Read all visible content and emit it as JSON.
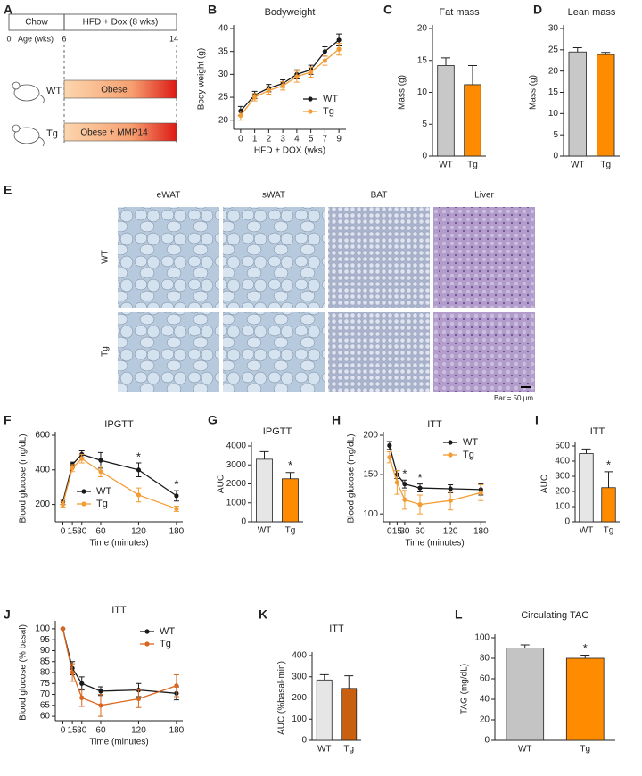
{
  "diagram": {
    "panel": "A",
    "phases": [
      "Chow",
      "HFD + Dox (8 wks)"
    ],
    "ticks": [
      "0",
      "6",
      "14"
    ],
    "axis_label": "Age (wks)",
    "rows": [
      {
        "label": "WT",
        "bar": "Obese"
      },
      {
        "label": "Tg",
        "bar": "Obese + MMP14"
      }
    ]
  },
  "histology": {
    "panel": "E",
    "columns": [
      "eWAT",
      "sWAT",
      "BAT",
      "Liver"
    ],
    "rows": [
      "WT",
      "Tg"
    ],
    "scale_note": "Bar = 50 μm"
  },
  "chart_data": [
    {
      "type": "line",
      "panel": "B",
      "title": "Bodyweight",
      "xlabel": "HFD + DOX (wks)",
      "ylabel": "Body weight (g)",
      "categories": [
        "0",
        "1",
        "2",
        "3",
        "4",
        "5",
        "7",
        "9"
      ],
      "ylim": [
        18,
        40
      ],
      "yticks": [
        20,
        25,
        30,
        35,
        40
      ],
      "legend": "lower right",
      "series": [
        {
          "name": "WT",
          "color": "#1a1a1a",
          "values": [
            22,
            25.5,
            27,
            28,
            30,
            31,
            35,
            37.5
          ],
          "errors": [
            1,
            0.8,
            0.8,
            0.8,
            1,
            1,
            1,
            1.3
          ]
        },
        {
          "name": "Tg",
          "color": "#f39c34",
          "values": [
            21,
            25,
            26.5,
            27.5,
            29.5,
            30.5,
            33,
            35.5
          ],
          "errors": [
            1,
            0.8,
            0.8,
            0.9,
            1.2,
            1.1,
            1,
            1.3
          ]
        }
      ]
    },
    {
      "type": "bar",
      "panel": "C",
      "title": "Fat mass",
      "ylabel": "Mass (g)",
      "categories": [
        "WT",
        "Tg"
      ],
      "values": [
        14.2,
        11.2
      ],
      "errors": [
        1.2,
        3
      ],
      "colors": [
        "#c8c8c8",
        "#ff8c00"
      ],
      "ylim": [
        0,
        20
      ],
      "yticks": [
        0,
        5,
        10,
        15,
        20
      ]
    },
    {
      "type": "bar",
      "panel": "D",
      "title": "Lean mass",
      "ylabel": "Mass (g)",
      "categories": [
        "WT",
        "Tg"
      ],
      "values": [
        24.5,
        23.9
      ],
      "errors": [
        1,
        0.5
      ],
      "colors": [
        "#c8c8c8",
        "#ff8c00"
      ],
      "ylim": [
        0,
        30
      ],
      "yticks": [
        0,
        5,
        10,
        15,
        20,
        25,
        30
      ]
    },
    {
      "type": "line",
      "panel": "F",
      "title": "IPGTT",
      "xlabel": "Time (minutes)",
      "ylabel": "Blood glucose (mg/dL)",
      "x": [
        0,
        15,
        30,
        60,
        120,
        180
      ],
      "xlim": [
        -12,
        190
      ],
      "xticks": [
        0,
        15,
        30,
        60,
        120,
        180
      ],
      "ylim": [
        100,
        600
      ],
      "yticks": [
        200,
        400,
        600
      ],
      "legend": "lower left",
      "series": [
        {
          "name": "WT",
          "color": "#1a1a1a",
          "values": [
            215,
            430,
            490,
            455,
            400,
            250
          ],
          "errors": [
            15,
            15,
            20,
            45,
            40,
            30
          ]
        },
        {
          "name": "Tg",
          "color": "#f39c34",
          "values": [
            200,
            410,
            465,
            390,
            255,
            175
          ],
          "errors": [
            15,
            20,
            25,
            30,
            40,
            15
          ]
        }
      ],
      "annotations": [
        {
          "text": "*",
          "x": 120
        },
        {
          "text": "*",
          "x": 180
        }
      ]
    },
    {
      "type": "bar",
      "panel": "G",
      "title": "IPGTT",
      "ylabel": "AUC",
      "categories": [
        "WT",
        "Tg"
      ],
      "values": [
        3300,
        2270
      ],
      "errors": [
        400,
        330
      ],
      "colors": [
        "#e6e6e6",
        "#ff8c00"
      ],
      "ylim": [
        0,
        4000
      ],
      "yticks": [
        0,
        1000,
        2000,
        3000,
        4000
      ],
      "annotations": [
        {
          "text": "*",
          "category": "Tg"
        }
      ]
    },
    {
      "type": "line",
      "panel": "H",
      "title": "ITT",
      "xlabel": "Time (minutes)",
      "ylabel": "Blood glucose (mg/dL)",
      "x": [
        0,
        15,
        30,
        60,
        120,
        180
      ],
      "xlim": [
        -12,
        190
      ],
      "xticks": [
        0,
        15,
        30,
        60,
        120,
        180
      ],
      "ylim": [
        90,
        200
      ],
      "yticks": [
        100,
        150,
        200
      ],
      "legend": "upper right",
      "series": [
        {
          "name": "WT",
          "color": "#1a1a1a",
          "values": [
            187,
            150,
            138,
            133,
            132,
            131
          ],
          "errors": [
            5,
            5,
            5,
            5,
            5,
            7
          ]
        },
        {
          "name": "Tg",
          "color": "#f39c34",
          "values": [
            172,
            140,
            118,
            112,
            117,
            127
          ],
          "errors": [
            7,
            15,
            12,
            12,
            12,
            10
          ]
        }
      ],
      "annotations": [
        {
          "text": "*",
          "x": 30
        },
        {
          "text": "*",
          "x": 60
        }
      ]
    },
    {
      "type": "bar",
      "panel": "I",
      "title": "ITT",
      "ylabel": "AUC",
      "categories": [
        "WT",
        "Tg"
      ],
      "values": [
        450,
        225
      ],
      "errors": [
        30,
        105
      ],
      "colors": [
        "#e6e6e6",
        "#ff8c00"
      ],
      "ylim": [
        0,
        500
      ],
      "yticks": [
        0,
        100,
        200,
        300,
        400,
        500
      ],
      "annotations": [
        {
          "text": "*",
          "category": "Tg"
        }
      ]
    },
    {
      "type": "line",
      "panel": "J",
      "title": "ITT",
      "xlabel": "Time (minutes)",
      "ylabel": "Blood glucose (% basal)",
      "x": [
        0,
        15,
        30,
        60,
        120,
        180
      ],
      "xlim": [
        -12,
        190
      ],
      "xticks": [
        0,
        15,
        30,
        60,
        120,
        180
      ],
      "ylim": [
        58,
        102
      ],
      "yticks": [
        60,
        65,
        70,
        75,
        80,
        85,
        90,
        95,
        100
      ],
      "legend": "upper right",
      "series": [
        {
          "name": "WT",
          "color": "#1a1a1a",
          "values": [
            100,
            82,
            75,
            71.5,
            72,
            70.5
          ],
          "errors": [
            0,
            3,
            3,
            2,
            3,
            3
          ]
        },
        {
          "name": "Tg",
          "color": "#d9661f",
          "values": [
            100,
            80,
            68.5,
            65,
            68,
            74
          ],
          "errors": [
            0,
            4,
            4,
            5,
            4,
            5
          ]
        }
      ]
    },
    {
      "type": "bar",
      "panel": "K",
      "title": "ITT",
      "ylabel": "AUC (%basal·min)",
      "categories": [
        "WT",
        "Tg"
      ],
      "values": [
        285,
        245
      ],
      "errors": [
        25,
        60
      ],
      "colors": [
        "#e6e6e6",
        "#c8600f"
      ],
      "ylim": [
        0,
        400
      ],
      "yticks": [
        0,
        100,
        200,
        300,
        400
      ]
    },
    {
      "type": "bar",
      "panel": "L",
      "title": "Circulating TAG",
      "ylabel": "TAG (mg/dL)",
      "categories": [
        "WT",
        "Tg"
      ],
      "values": [
        90,
        80
      ],
      "errors": [
        3,
        3
      ],
      "colors": [
        "#c4c4c4",
        "#ff8c00"
      ],
      "ylim": [
        0,
        100
      ],
      "yticks": [
        0,
        20,
        40,
        60,
        80,
        100
      ],
      "annotations": [
        {
          "text": "*",
          "category": "Tg"
        }
      ]
    }
  ]
}
